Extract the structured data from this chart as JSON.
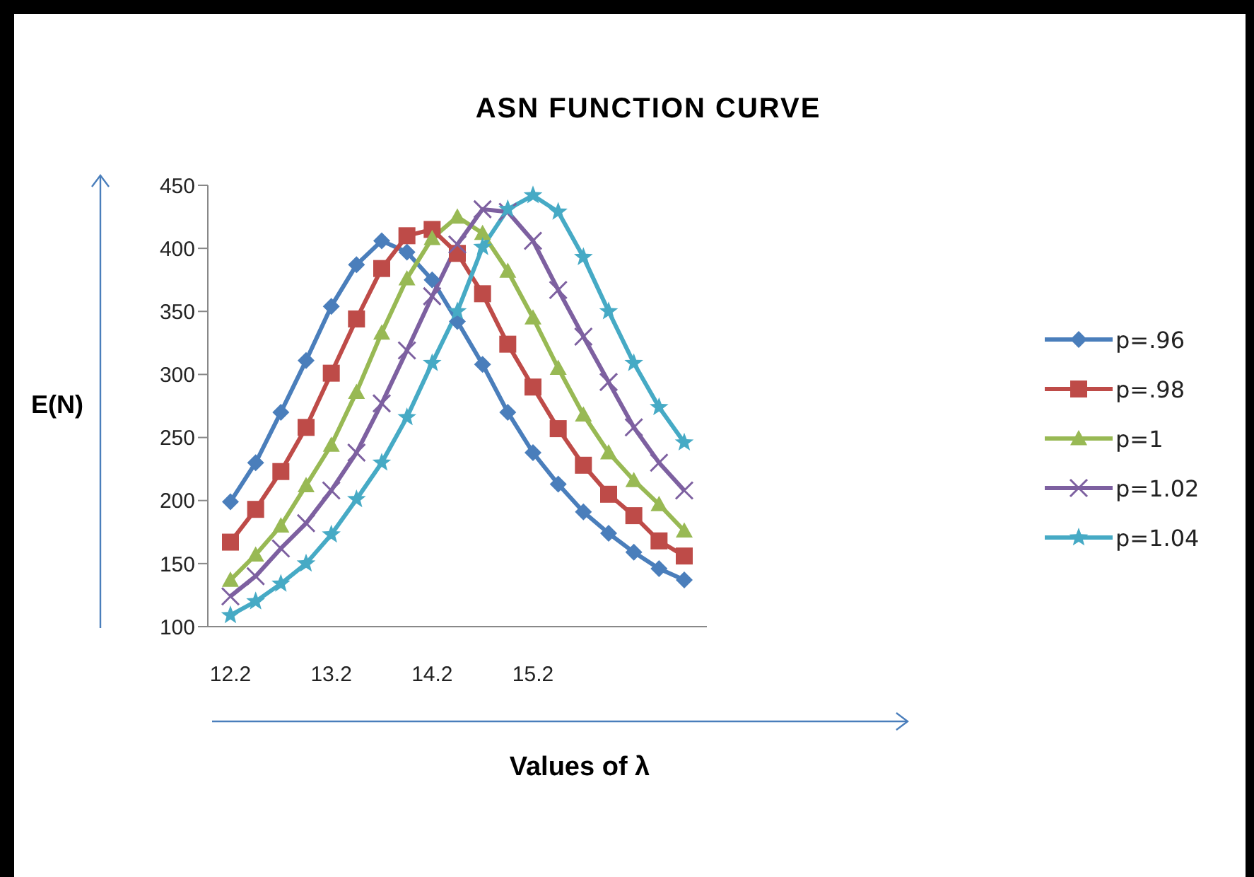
{
  "chart_data": {
    "type": "line",
    "title": "ASN FUNCTION CURVE",
    "xlabel": "Values of λ",
    "ylabel": "E(N)",
    "categories": [
      "12.2",
      null,
      null,
      null,
      "13.2",
      null,
      null,
      null,
      "14.2",
      null,
      null,
      null,
      "15.2",
      null,
      null,
      null,
      null,
      null,
      null
    ],
    "ylim": [
      100,
      450
    ],
    "yticks": [
      100,
      150,
      200,
      250,
      300,
      350,
      400,
      450
    ],
    "grid": false,
    "legend": "right",
    "series": [
      {
        "name": "p=.96",
        "color": "#4a7ebb",
        "marker": "diamond",
        "values": [
          199,
          230,
          270,
          311,
          354,
          387,
          406,
          397,
          375,
          342,
          308,
          270,
          238,
          213,
          191,
          174,
          159,
          146,
          137
        ]
      },
      {
        "name": "p=.98",
        "color": "#be4b48",
        "marker": "square",
        "values": [
          167,
          193,
          223,
          258,
          301,
          344,
          384,
          410,
          415,
          396,
          364,
          324,
          290,
          257,
          228,
          205,
          188,
          168,
          156
        ]
      },
      {
        "name": "p=1",
        "color": "#98b954",
        "marker": "triangle",
        "values": [
          137,
          157,
          180,
          212,
          244,
          286,
          333,
          376,
          408,
          425,
          412,
          382,
          345,
          305,
          268,
          238,
          216,
          197,
          176
        ]
      },
      {
        "name": "p=1.02",
        "color": "#7d60a0",
        "marker": "cross",
        "values": [
          124,
          140,
          162,
          182,
          208,
          238,
          277,
          319,
          362,
          403,
          431,
          429,
          406,
          367,
          330,
          294,
          258,
          230,
          208
        ]
      },
      {
        "name": "p=1.04",
        "color": "#46aac5",
        "marker": "star",
        "values": [
          109,
          120,
          134,
          150,
          173,
          201,
          230,
          266,
          309,
          350,
          401,
          431,
          442,
          429,
          393,
          350,
          309,
          274,
          246
        ]
      }
    ]
  }
}
